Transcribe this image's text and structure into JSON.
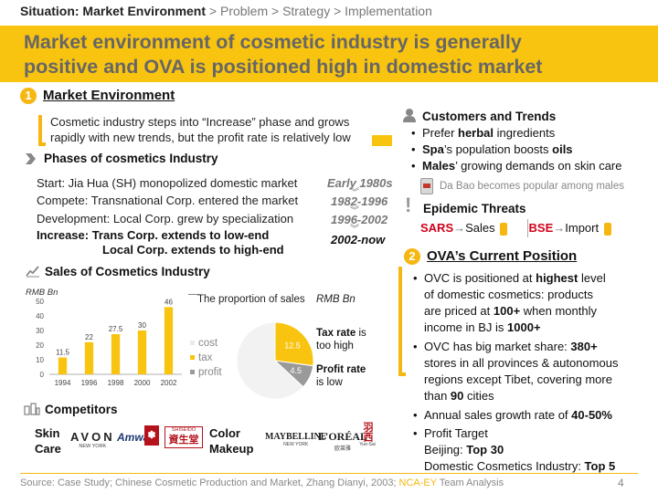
{
  "breadcrumb": {
    "current": "Situation: Market Environment",
    "rest": " > Problem > Strategy > Implementation"
  },
  "title": {
    "line1": "Market environment of cosmetic industry is generally",
    "line2": "positive and OVA is positioned high in domestic market"
  },
  "market_env": {
    "badge": "1",
    "heading": "Market Environment",
    "summary_line1": "Cosmetic industry steps into “Increase” phase and grows",
    "summary_line2": "rapidly with new trends, but the profit rate is relatively low"
  },
  "phases": {
    "heading": "Phases of cosmetics Industry",
    "rows": [
      {
        "text": "Start: Jia Hua (SH) monopolized domestic market",
        "year": "Early 1980s"
      },
      {
        "text": "Compete: Transnational Corp. entered the market",
        "year": "1982-1996"
      },
      {
        "text": "Development: Local Corp. grew by specialization",
        "year": "1996-2002"
      },
      {
        "text": "Increase: Trans Corp. extends to low-end",
        "year": "2002-now"
      }
    ],
    "increase_line2": "Local Corp. extends to high-end"
  },
  "sales": {
    "heading": "Sales of Cosmetics Industry",
    "unit": "RMB Bn",
    "pie_title": "The proportion of sales",
    "pie_unit": "RMB Bn",
    "legend": {
      "cost": "cost",
      "tax": "tax",
      "profit": "profit"
    },
    "tax_note_bold": "Tax rate",
    "tax_note_rest": " is",
    "tax_note_line2": "too high",
    "profit_note_line1": "Profit rate",
    "profit_note_line2": "is low"
  },
  "chart_data": [
    {
      "type": "bar",
      "title": "Sales of Cosmetics Industry",
      "ylabel": "RMB Bn",
      "categories": [
        "1994",
        "1996",
        "1998",
        "2000",
        "2002"
      ],
      "values": [
        11.5,
        22,
        27.5,
        30,
        46
      ],
      "labels": [
        "11.5",
        "22",
        "27.5",
        "30",
        "46"
      ],
      "yticks": [
        0,
        10,
        20,
        30,
        40,
        50
      ],
      "ylim": [
        0,
        50
      ],
      "color": "#f9c40f"
    },
    {
      "type": "pie",
      "title": "The proportion of sales",
      "unit": "RMB Bn",
      "slices": [
        {
          "name": "cost",
          "value": 29,
          "label": "",
          "color": "#f2f2f2"
        },
        {
          "name": "tax",
          "value": 12.5,
          "label": "12.5",
          "color": "#f9c40f"
        },
        {
          "name": "profit",
          "value": 4.5,
          "label": "4.5",
          "color": "#9a9a9a"
        }
      ]
    }
  ],
  "competitors": {
    "heading": "Competitors",
    "skin_care_line1": "Skin",
    "skin_care_line2": "Care",
    "color_makeup_line1": "Color",
    "color_makeup_line2": "Makeup",
    "skin_logos": {
      "avon": "AVON",
      "avon_sub": "NEW YORK",
      "amway": "Amway",
      "shiseido_top": "SHISEIDO",
      "shiseido_main": "資生堂"
    },
    "makeup_logos": {
      "maybelline": "MAYBELLINE",
      "maybelline_sub": "NEW YORK",
      "loreal": "L'ORÉAL",
      "loreal_sub": "欧莱雅",
      "yuesai_main": "羽西",
      "yuesai_sub": "Yue-Sai"
    }
  },
  "customers": {
    "heading": "Customers and Trends",
    "items": [
      {
        "pre": "Prefer ",
        "bold": "herbal",
        "post": " ingredients"
      },
      {
        "pre": "",
        "bold": "Spa",
        "post": "’s population boosts ",
        "bold2": "oils"
      },
      {
        "pre": "",
        "bold": "Males",
        "post": "’ growing demands on skin care"
      }
    ],
    "da_bao_note": "Da Bao becomes popular among males"
  },
  "epidemic": {
    "heading": "Epidemic Threats",
    "sars": "SARS",
    "sales": "Sales",
    "bse": "BSE",
    "import": "Import"
  },
  "ova": {
    "badge": "2",
    "heading": "OVA’s Current Position",
    "b1": {
      "l1_pre": "OVC is positioned at ",
      "l1_bold": "highest",
      "l1_post": " level",
      "l2": "of domestic cosmetics: products",
      "l3_pre": "are priced at ",
      "l3_bold": "100+",
      "l3_post": " when monthly",
      "l4_pre": "income in BJ is ",
      "l4_bold": "1000+"
    },
    "b2": {
      "l1_pre": "OVC has big market share: ",
      "l1_bold": "380+",
      "l2": "stores in all provinces & autonomous",
      "l3": "regions except Tibet, covering more",
      "l4_pre": "than ",
      "l4_bold": "90",
      "l4_post": " cities"
    },
    "b3": {
      "pre": "Annual sales growth rate of ",
      "bold": "40-50%"
    },
    "b4": {
      "l1": "Profit Target",
      "l2_pre": "Beijing: ",
      "l2_bold": "Top 30",
      "l3_pre": "Domestic Cosmetics Industry: ",
      "l3_bold": "Top 5"
    }
  },
  "footer": {
    "source": "Source: Case Study; Chinese Cosmetic Production and Market, Zhang Dianyi, 2003; ",
    "highlight": "NCA-EY",
    "tail": " Team Analysis",
    "page": "4"
  }
}
